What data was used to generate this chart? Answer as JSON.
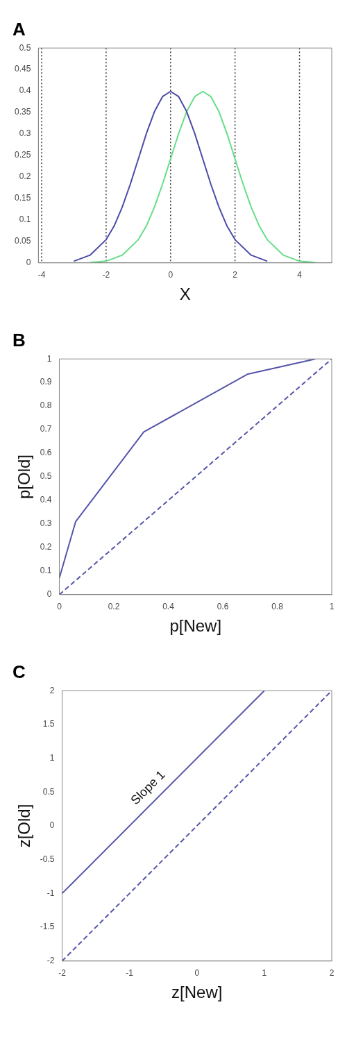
{
  "chart_data": [
    {
      "type": "line",
      "title": "A",
      "xlabel": "X",
      "xlim": [
        -4.1,
        5
      ],
      "xticks": [
        -4,
        -2,
        0,
        2,
        4
      ],
      "ylim": [
        0,
        0.5
      ],
      "yticks": [
        0,
        0.05,
        0.1,
        0.15,
        0.2,
        0.25,
        0.3,
        0.35,
        0.4,
        0.45,
        0.5
      ],
      "marker": "none",
      "grid": false,
      "legend": false,
      "ref_lines": [
        {
          "axis": "x",
          "value": -4,
          "color": "#333333",
          "line_style": "dotted"
        },
        {
          "axis": "x",
          "value": -2,
          "color": "#333333",
          "line_style": "dotted"
        },
        {
          "axis": "x",
          "value": 0,
          "color": "#333333",
          "line_style": "dotted"
        },
        {
          "axis": "x",
          "value": 2,
          "color": "#333333",
          "line_style": "dotted"
        },
        {
          "axis": "x",
          "value": 4,
          "color": "#333333",
          "line_style": "dotted"
        }
      ],
      "series": [
        {
          "color": "#4b4ba8",
          "line_style": "solid",
          "x": [
            -3,
            -2.5,
            -2,
            -1.75,
            -1.5,
            -1.25,
            -1,
            -0.75,
            -0.5,
            -0.25,
            0,
            0.25,
            0.5,
            0.75,
            1,
            1.25,
            1.5,
            1.75,
            2,
            2.5,
            3
          ],
          "values": [
            0.004,
            0.018,
            0.054,
            0.086,
            0.13,
            0.183,
            0.242,
            0.301,
            0.352,
            0.387,
            0.399,
            0.387,
            0.352,
            0.301,
            0.242,
            0.183,
            0.13,
            0.086,
            0.054,
            0.018,
            0.004
          ]
        },
        {
          "color": "#66dd88",
          "line_style": "solid",
          "x": [
            -2.5,
            -2,
            -1.5,
            -1,
            -0.75,
            -0.5,
            -0.25,
            0,
            0.25,
            0.5,
            0.75,
            1,
            1.25,
            1.5,
            1.75,
            2,
            2.25,
            2.5,
            2.75,
            3,
            3.5,
            4,
            4.5
          ],
          "values": [
            0.001,
            0.004,
            0.018,
            0.054,
            0.086,
            0.13,
            0.183,
            0.242,
            0.301,
            0.352,
            0.387,
            0.399,
            0.387,
            0.352,
            0.301,
            0.242,
            0.183,
            0.13,
            0.086,
            0.054,
            0.018,
            0.004,
            0.001
          ]
        }
      ]
    },
    {
      "type": "line",
      "title": "B",
      "xlabel": "p[New]",
      "ylabel": "p[Old]",
      "xlim": [
        0,
        1
      ],
      "xticks": [
        0,
        0.2,
        0.4,
        0.6,
        0.8,
        1
      ],
      "ylim": [
        0,
        1
      ],
      "yticks": [
        0,
        0.1,
        0.2,
        0.3,
        0.4,
        0.5,
        0.6,
        0.7,
        0.8,
        0.9,
        1
      ],
      "marker": "none",
      "grid": false,
      "legend": false,
      "series": [
        {
          "color": "#5555aa",
          "line_style": "solid",
          "x": [
            0,
            0.06,
            0.31,
            0.69,
            0.94
          ],
          "values": [
            0.07,
            0.31,
            0.69,
            0.935,
            1
          ]
        },
        {
          "color": "#5555aa",
          "line_style": "dashed",
          "x": [
            0,
            1
          ],
          "values": [
            0,
            1
          ]
        }
      ]
    },
    {
      "type": "line",
      "title": "C",
      "xlabel": "z[New]",
      "ylabel": "z[Old]",
      "xlim": [
        -2,
        2
      ],
      "xticks": [
        -2,
        -1,
        0,
        1,
        2
      ],
      "ylim": [
        -2,
        2
      ],
      "yticks": [
        -2,
        -1.5,
        -1,
        -0.5,
        0,
        0.5,
        1,
        1.5,
        2
      ],
      "marker": "none",
      "grid": false,
      "legend": false,
      "annotations": [
        "Slope 1"
      ],
      "series": [
        {
          "color": "#5555aa",
          "line_style": "solid",
          "x": [
            -2,
            1
          ],
          "values": [
            -1,
            2
          ]
        },
        {
          "color": "#5555aa",
          "line_style": "dashed",
          "x": [
            -2,
            2
          ],
          "values": [
            -2,
            2
          ]
        }
      ]
    }
  ]
}
